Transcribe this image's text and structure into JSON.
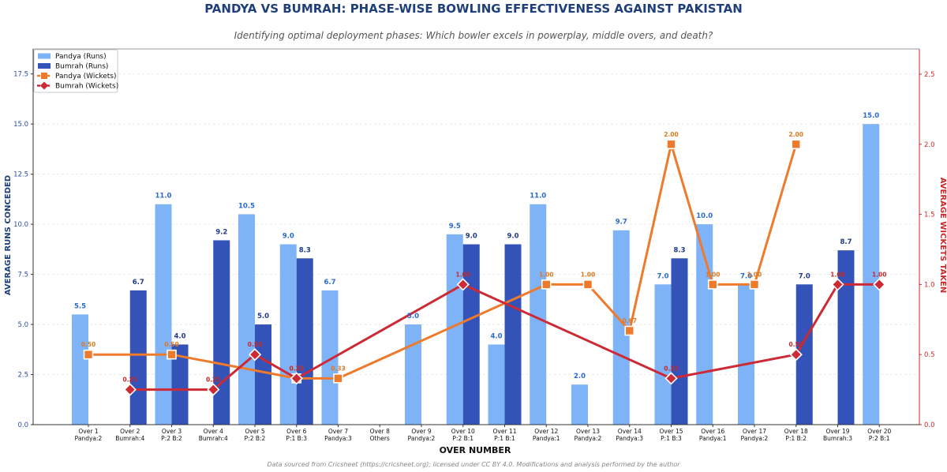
{
  "title": "PANDYA VS BUMRAH: PHASE-WISE BOWLING EFFECTIVENESS AGAINST PAKISTAN",
  "subtitle": "Identifying optimal deployment phases: Which bowler excels in powerplay, middle overs, and death?",
  "footer": "Data sourced from Cricsheet (https://cricsheet.org); licensed under CC BY 4.0. Modifications and analysis performed by the author",
  "colors": {
    "pandya_runs": "#7eb3f8",
    "bumrah_runs": "#3453b8",
    "pandya_wickets": "#ee7a2c",
    "bumrah_wickets": "#cc2a35"
  },
  "chart_data": {
    "type": "bar",
    "xlabel": "OVER NUMBER",
    "ylabel": "AVERAGE RUNS CONCEDED",
    "y2label": "AVERAGE WICKETS TAKEN",
    "ylim": [
      0,
      18.75
    ],
    "y2lim": [
      0,
      2.68
    ],
    "yticks": [
      "0.0",
      "2.5",
      "5.0",
      "7.5",
      "10.0",
      "12.5",
      "15.0",
      "17.5"
    ],
    "y2ticks": [
      "0.0",
      "0.5",
      "1.0",
      "1.5",
      "2.0",
      "2.5"
    ],
    "grid": true,
    "legend_position": "top-left",
    "categories": [
      [
        "Over 1",
        "Pandya:2"
      ],
      [
        "Over 2",
        "Bumrah:4"
      ],
      [
        "Over 3",
        "P:2 B:2"
      ],
      [
        "Over 4",
        "Bumrah:4"
      ],
      [
        "Over 5",
        "P:2 B:2"
      ],
      [
        "Over 6",
        "P:1 B:3"
      ],
      [
        "Over 7",
        "Pandya:3"
      ],
      [
        "Over 8",
        "Others"
      ],
      [
        "Over 9",
        "Pandya:2"
      ],
      [
        "Over 10",
        "P:2 B:1"
      ],
      [
        "Over 11",
        "P:1 B:1"
      ],
      [
        "Over 12",
        "Pandya:1"
      ],
      [
        "Over 13",
        "Pandya:2"
      ],
      [
        "Over 14",
        "Pandya:3"
      ],
      [
        "Over 15",
        "P:1 B:3"
      ],
      [
        "Over 16",
        "Pandya:1"
      ],
      [
        "Over 17",
        "Pandya:2"
      ],
      [
        "Over 18",
        "P:1 B:2"
      ],
      [
        "Over 19",
        "Bumrah:3"
      ],
      [
        "Over 20",
        "P:2 B:1"
      ]
    ],
    "series": [
      {
        "name": "Pandya (Runs)",
        "kind": "bar",
        "values": [
          5.5,
          null,
          11.0,
          null,
          10.5,
          9.0,
          6.7,
          null,
          5.0,
          9.5,
          4.0,
          11.0,
          2.0,
          9.7,
          7.0,
          10.0,
          7.0,
          null,
          null,
          15.0
        ]
      },
      {
        "name": "Bumrah (Runs)",
        "kind": "bar",
        "values": [
          null,
          6.7,
          4.0,
          9.2,
          5.0,
          8.3,
          null,
          null,
          null,
          9.0,
          9.0,
          null,
          null,
          null,
          8.3,
          null,
          null,
          7.0,
          8.7,
          null
        ]
      },
      {
        "name": "Pandya (Wickets)",
        "kind": "line",
        "axis": "right",
        "values": [
          0.5,
          null,
          0.5,
          null,
          null,
          0.33,
          0.33,
          null,
          null,
          null,
          null,
          1.0,
          1.0,
          0.67,
          2.0,
          1.0,
          1.0,
          2.0,
          null,
          null
        ]
      },
      {
        "name": "Bumrah (Wickets)",
        "kind": "line",
        "axis": "right",
        "values": [
          null,
          0.25,
          null,
          0.25,
          0.5,
          0.33,
          null,
          null,
          null,
          1.0,
          null,
          null,
          null,
          null,
          0.33,
          null,
          null,
          0.5,
          1.0,
          1.0
        ]
      }
    ]
  }
}
